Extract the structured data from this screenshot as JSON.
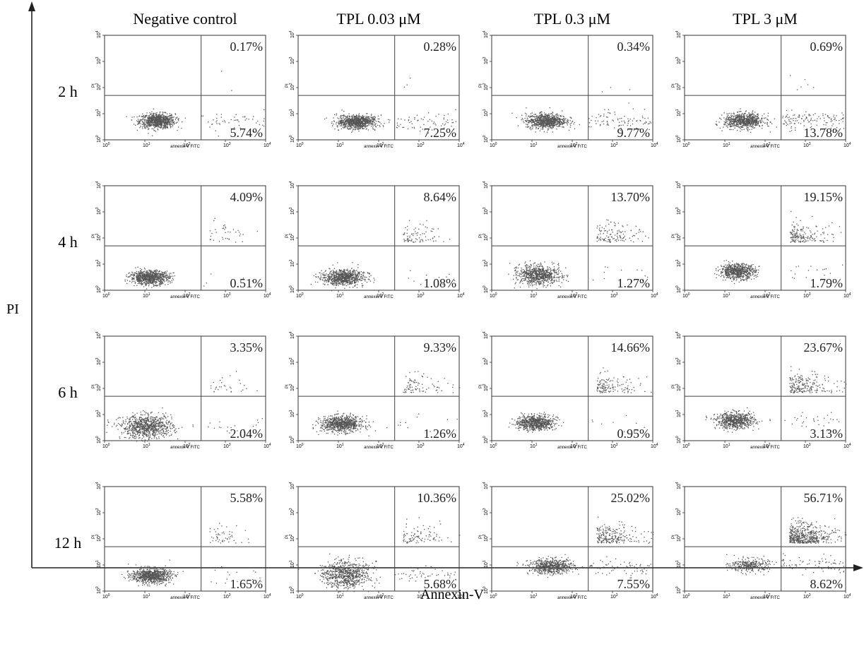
{
  "chart_data": {
    "type": "scatter",
    "title": "",
    "xlabel": "Annexin-V",
    "ylabel": "PI",
    "panel_xlabel": "annexin V FITC",
    "panel_ylabel": "PI",
    "x_scale": "log",
    "y_scale": "log",
    "xlim": [
      1,
      10000
    ],
    "ylim": [
      1,
      10000
    ],
    "quadrant_gate": {
      "x": 250,
      "y": 50
    },
    "columns": [
      "Negative control",
      "TPL 0.03 μM",
      "TPL 0.3 μM",
      "TPL 3 μM"
    ],
    "rows": [
      "2 h",
      "4 h",
      "6 h",
      "12 h"
    ],
    "x_tick_labels": [
      "10",
      "10",
      "10",
      "10",
      "10"
    ],
    "x_tick_exponents": [
      "0",
      "1",
      "2",
      "3",
      "4"
    ],
    "y_tick_labels": [
      "10",
      "10",
      "10",
      "10",
      "10"
    ],
    "y_tick_exponents": [
      "0",
      "1",
      "2",
      "3",
      "4"
    ],
    "panels": [
      {
        "row": "2 h",
        "column": "Negative control",
        "upper_right": "0.17%",
        "lower_right": "5.74%",
        "population": {
          "cx": 20,
          "cy": 5.5,
          "spread_x": 0.22,
          "spread_y": 0.14,
          "late_apoptotic": 0.0017,
          "early_apoptotic": 0.057
        }
      },
      {
        "row": "2 h",
        "column": "TPL 0.03 μM",
        "upper_right": "0.28%",
        "lower_right": "7.25%",
        "population": {
          "cx": 28,
          "cy": 5,
          "spread_x": 0.24,
          "spread_y": 0.13,
          "late_apoptotic": 0.0028,
          "early_apoptotic": 0.0725
        }
      },
      {
        "row": "2 h",
        "column": "TPL 0.3 μM",
        "upper_right": "0.34%",
        "lower_right": "9.77%",
        "population": {
          "cx": 22,
          "cy": 5.5,
          "spread_x": 0.25,
          "spread_y": 0.14,
          "late_apoptotic": 0.0034,
          "early_apoptotic": 0.0977
        }
      },
      {
        "row": "2 h",
        "column": "TPL 3 μM",
        "upper_right": "0.69%",
        "lower_right": "13.78%",
        "population": {
          "cx": 30,
          "cy": 5.5,
          "spread_x": 0.25,
          "spread_y": 0.14,
          "late_apoptotic": 0.0069,
          "early_apoptotic": 0.1378
        }
      },
      {
        "row": "4 h",
        "column": "Negative control",
        "upper_right": "4.09%",
        "lower_right": "0.51%",
        "population": {
          "cx": 13,
          "cy": 3.2,
          "spread_x": 0.24,
          "spread_y": 0.13,
          "late_apoptotic": 0.0409,
          "early_apoptotic": 0.0051
        }
      },
      {
        "row": "4 h",
        "column": "TPL 0.03 μM",
        "upper_right": "8.64%",
        "lower_right": "1.08%",
        "population": {
          "cx": 13,
          "cy": 3.2,
          "spread_x": 0.26,
          "spread_y": 0.15,
          "late_apoptotic": 0.0864,
          "early_apoptotic": 0.0108
        }
      },
      {
        "row": "4 h",
        "column": "TPL 0.3 μM",
        "upper_right": "13.70%",
        "lower_right": "1.27%",
        "population": {
          "cx": 14,
          "cy": 4,
          "spread_x": 0.26,
          "spread_y": 0.18,
          "late_apoptotic": 0.137,
          "early_apoptotic": 0.0127
        }
      },
      {
        "row": "4 h",
        "column": "TPL 3 μM",
        "upper_right": "19.15%",
        "lower_right": "1.79%",
        "population": {
          "cx": 20,
          "cy": 5.5,
          "spread_x": 0.22,
          "spread_y": 0.14,
          "late_apoptotic": 0.1915,
          "early_apoptotic": 0.0179
        }
      },
      {
        "row": "6 h",
        "column": "Negative control",
        "upper_right": "3.35%",
        "lower_right": "2.04%",
        "population": {
          "cx": 11,
          "cy": 3.5,
          "spread_x": 0.32,
          "spread_y": 0.22,
          "late_apoptotic": 0.0335,
          "early_apoptotic": 0.0204
        }
      },
      {
        "row": "6 h",
        "column": "TPL 0.03 μM",
        "upper_right": "9.33%",
        "lower_right": "1.26%",
        "population": {
          "cx": 12,
          "cy": 4.5,
          "spread_x": 0.26,
          "spread_y": 0.15,
          "late_apoptotic": 0.0933,
          "early_apoptotic": 0.0126
        }
      },
      {
        "row": "6 h",
        "column": "TPL 0.3 μM",
        "upper_right": "14.66%",
        "lower_right": "0.95%",
        "population": {
          "cx": 12,
          "cy": 5,
          "spread_x": 0.22,
          "spread_y": 0.14,
          "late_apoptotic": 0.1466,
          "early_apoptotic": 0.0095
        }
      },
      {
        "row": "6 h",
        "column": "TPL 3 μM",
        "upper_right": "23.67%",
        "lower_right": "3.13%",
        "population": {
          "cx": 18,
          "cy": 6,
          "spread_x": 0.24,
          "spread_y": 0.15,
          "late_apoptotic": 0.2367,
          "early_apoptotic": 0.0313
        }
      },
      {
        "row": "12 h",
        "column": "Negative control",
        "upper_right": "5.58%",
        "lower_right": "1.65%",
        "population": {
          "cx": 14,
          "cy": 4,
          "spread_x": 0.24,
          "spread_y": 0.14,
          "late_apoptotic": 0.0558,
          "early_apoptotic": 0.0165
        }
      },
      {
        "row": "12 h",
        "column": "TPL 0.03 μM",
        "upper_right": "10.36%",
        "lower_right": "5.68%",
        "population": {
          "cx": 15,
          "cy": 4.5,
          "spread_x": 0.3,
          "spread_y": 0.25,
          "late_apoptotic": 0.1036,
          "early_apoptotic": 0.0568
        }
      },
      {
        "row": "12 h",
        "column": "TPL 0.3 μM",
        "upper_right": "25.02%",
        "lower_right": "7.55%",
        "population": {
          "cx": 30,
          "cy": 9,
          "spread_x": 0.28,
          "spread_y": 0.14,
          "late_apoptotic": 0.2502,
          "early_apoptotic": 0.0755
        }
      },
      {
        "row": "12 h",
        "column": "TPL 3 μM",
        "upper_right": "56.71%",
        "lower_right": "8.62%",
        "population": {
          "cx": 40,
          "cy": 10,
          "spread_x": 0.24,
          "spread_y": 0.13,
          "late_apoptotic": 0.5671,
          "early_apoptotic": 0.0862
        }
      }
    ],
    "dot_color": "#555555",
    "grid": false
  }
}
